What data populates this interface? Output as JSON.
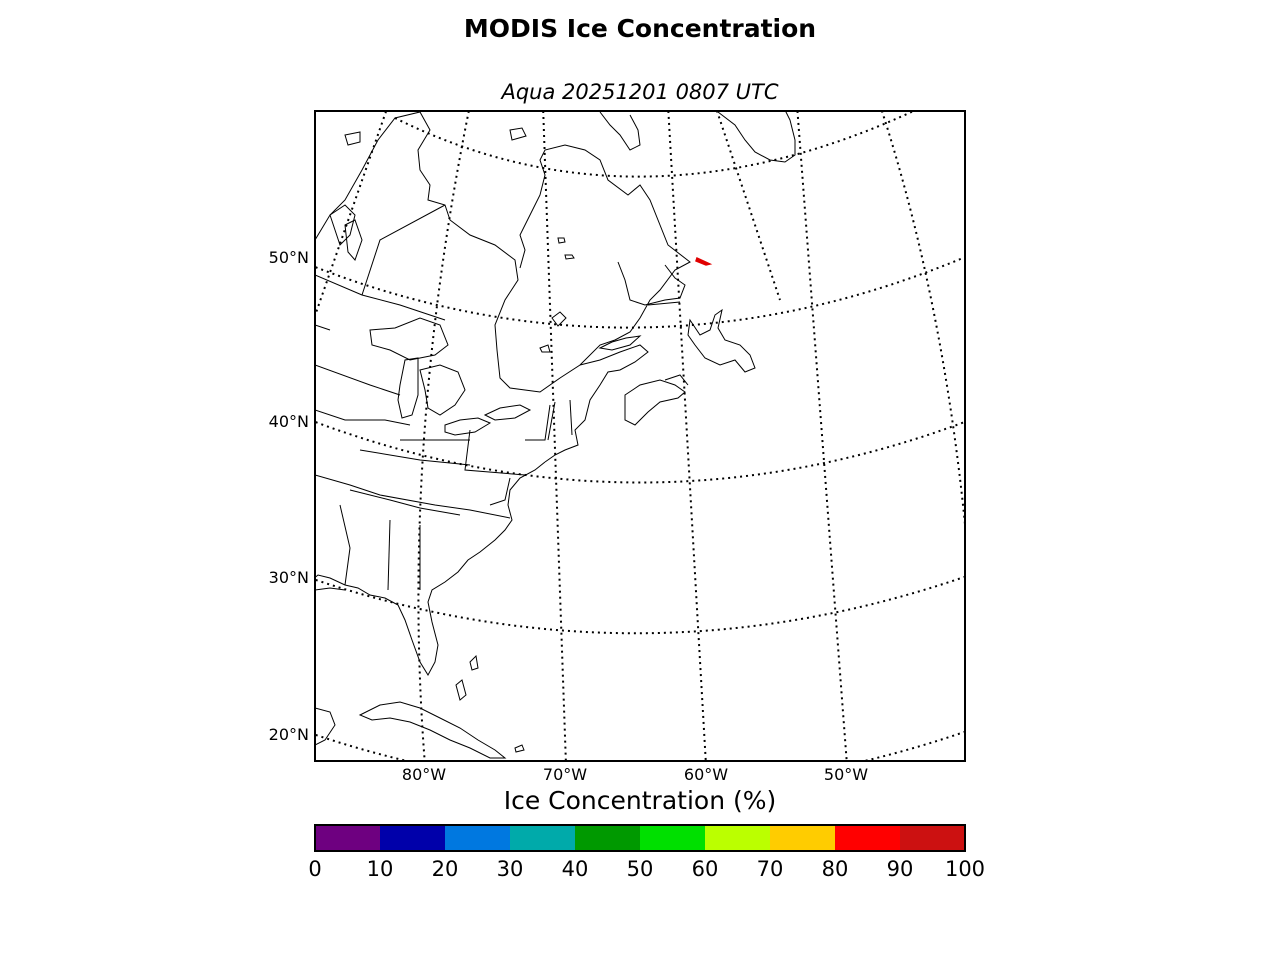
{
  "title": "MODIS Ice Concentration",
  "subtitle": "Aqua 20251201 0807 UTC",
  "map": {
    "projection": "lambert-conformal",
    "lat_labels": [
      "20°N",
      "30°N",
      "40°N",
      "50°N"
    ],
    "lon_labels": [
      "80°W",
      "70°W",
      "60°W",
      "50°W"
    ],
    "gridlines": "dotted",
    "ice_feature_color": "#e00000"
  },
  "colorbar": {
    "label": "Ice Concentration (%)",
    "ticks": [
      "0",
      "10",
      "20",
      "30",
      "40",
      "50",
      "60",
      "70",
      "80",
      "90",
      "100"
    ],
    "colors": [
      "#6e0080",
      "#0000aa",
      "#0078e0",
      "#00aaaa",
      "#009900",
      "#00e000",
      "#bbff00",
      "#ffcc00",
      "#ff0000",
      "#cc1111"
    ]
  }
}
